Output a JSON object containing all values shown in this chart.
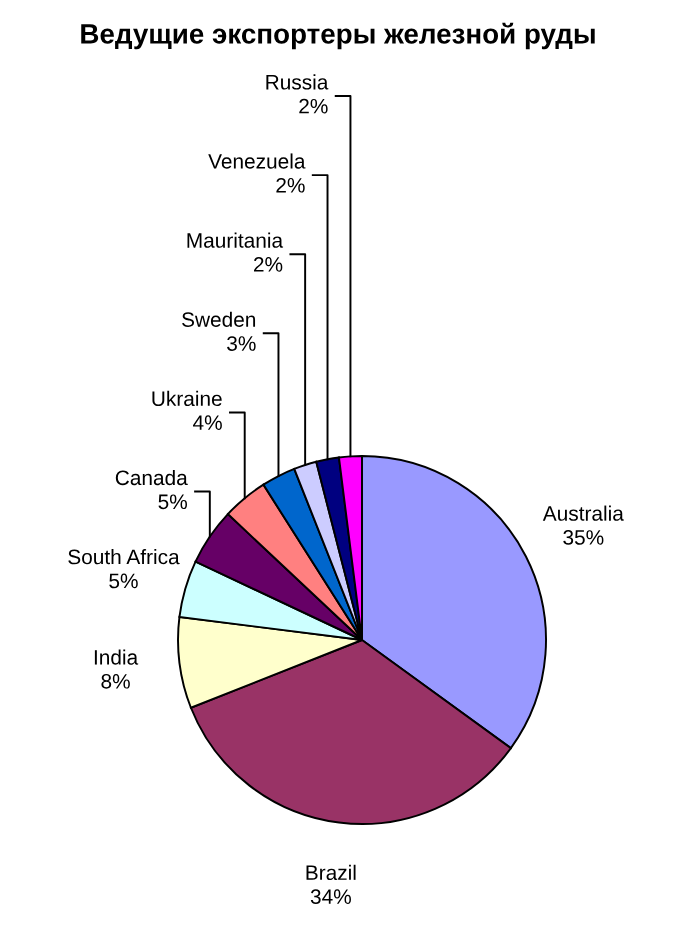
{
  "chart_data": {
    "type": "pie",
    "title": "Ведущие экспортеры железной руды",
    "categories": [
      "Australia",
      "Brazil",
      "India",
      "South Africa",
      "Canada",
      "Ukraine",
      "Sweden",
      "Mauritania",
      "Venezuela",
      "Russia"
    ],
    "values": [
      35,
      34,
      8,
      5,
      5,
      4,
      3,
      2,
      2,
      2
    ],
    "value_labels": [
      "35%",
      "34%",
      "8%",
      "5%",
      "5%",
      "4%",
      "3%",
      "2%",
      "2%",
      "2%"
    ],
    "colors": [
      "#9999ff",
      "#993366",
      "#ffffcc",
      "#ccffff",
      "#660066",
      "#ff8080",
      "#0066cc",
      "#ccccff",
      "#000080",
      "#ff00ff"
    ],
    "legend": false
  }
}
